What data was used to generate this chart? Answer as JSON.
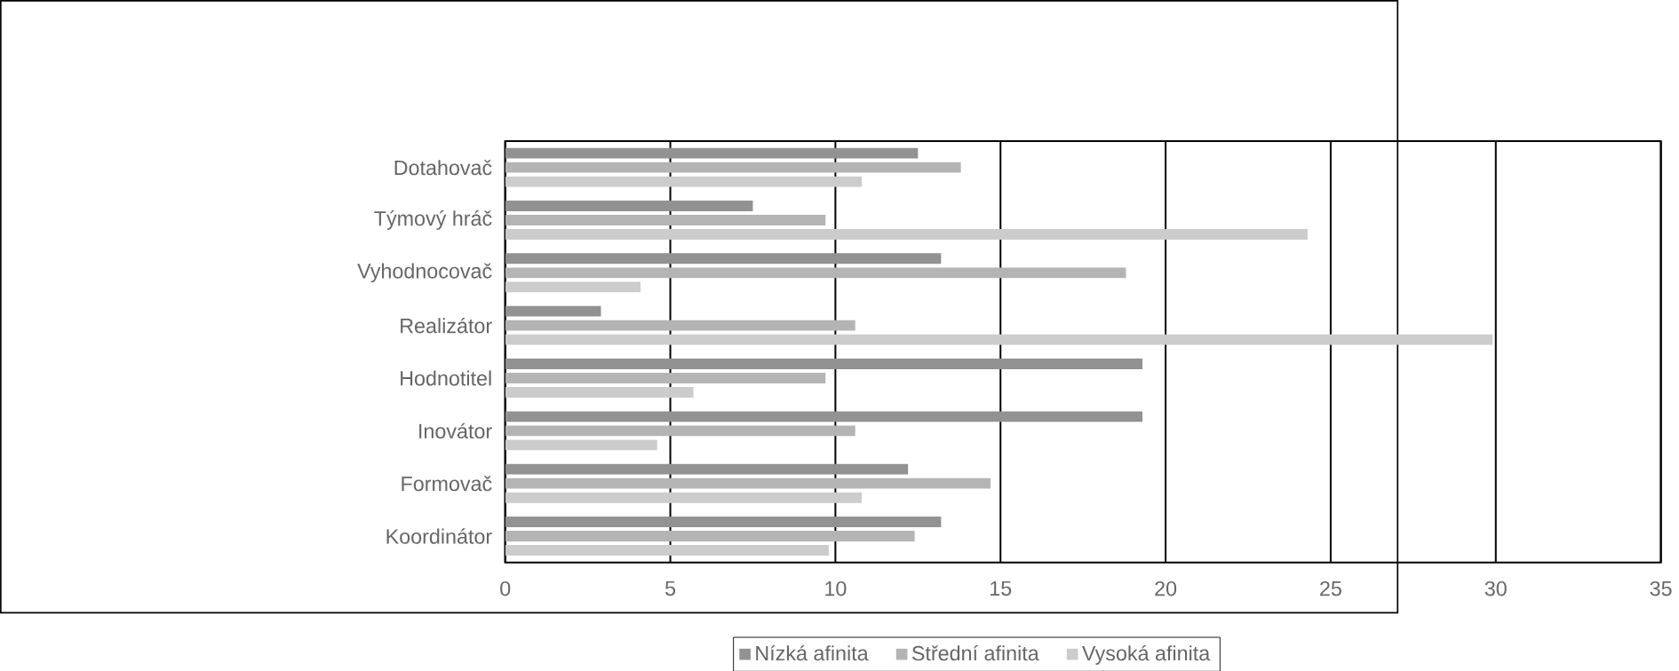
{
  "chart_data": {
    "type": "bar",
    "orientation": "horizontal",
    "categories": [
      "Dotahovač",
      "Týmový hráč",
      "Vyhodnocovač",
      "Realizátor",
      "Hodnotitel",
      "Inovátor",
      "Formovač",
      "Koordinátor"
    ],
    "series": [
      {
        "name": "Nízká afinita",
        "color": "#929292",
        "values": [
          12.5,
          7.5,
          13.2,
          2.9,
          19.3,
          19.3,
          12.2,
          13.2
        ]
      },
      {
        "name": "Střední afinita",
        "color": "#b4b4b4",
        "values": [
          13.8,
          9.7,
          18.8,
          10.6,
          9.7,
          10.6,
          14.7,
          12.4
        ]
      },
      {
        "name": "Vysoká afinita",
        "color": "#cccccc",
        "values": [
          10.8,
          24.3,
          4.1,
          29.9,
          5.7,
          4.6,
          10.8,
          9.8
        ]
      }
    ],
    "xlim": [
      0,
      35
    ],
    "xticks": [
      0,
      5,
      10,
      15,
      20,
      25,
      30,
      35
    ],
    "grid": "x",
    "legend": "bottom"
  }
}
